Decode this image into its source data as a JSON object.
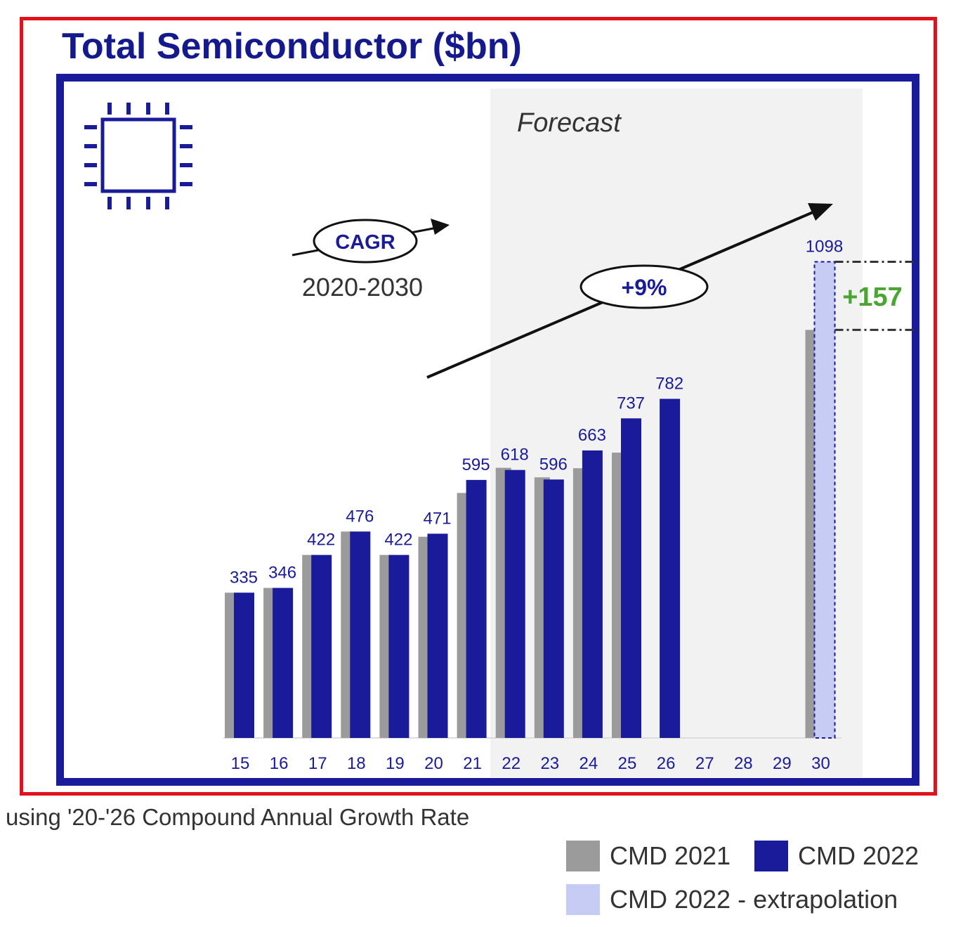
{
  "title": "Total Semiconductor ($bn)",
  "forecast_label": "Forecast",
  "cagr": {
    "label": "CAGR",
    "period": "2020-2030",
    "value": "+9%"
  },
  "delta_label": "+157",
  "footnote": "using '20-'26 Compound Annual Growth Rate",
  "colors": {
    "frame_red": "#e0121b",
    "frame_blue": "#1a1b9a",
    "cmd2021": "#9b9b9b",
    "cmd2022": "#1a1b9a",
    "extrapolation": "#c7ccf5",
    "delta": "#4aa532"
  },
  "legend": [
    {
      "label": "CMD 2021",
      "color": "#9b9b9b"
    },
    {
      "label": "CMD 2022",
      "color": "#1a1b9a"
    },
    {
      "label": "CMD 2022 - extrapolation",
      "color": "#c7ccf5"
    }
  ],
  "chart_data": {
    "type": "bar",
    "title": "Total Semiconductor ($bn)",
    "categories": [
      "15",
      "16",
      "17",
      "18",
      "19",
      "20",
      "21",
      "22",
      "23",
      "24",
      "25",
      "26",
      "27",
      "28",
      "29",
      "30"
    ],
    "forecast_from": "22",
    "series": [
      {
        "name": "CMD 2021",
        "values": [
          335,
          346,
          422,
          476,
          422,
          464,
          565,
          623,
          601,
          622,
          658,
          null,
          null,
          null,
          null,
          941
        ]
      },
      {
        "name": "CMD 2022",
        "values": [
          335,
          346,
          422,
          476,
          422,
          471,
          595,
          618,
          596,
          663,
          737,
          782,
          null,
          null,
          null,
          null
        ]
      },
      {
        "name": "CMD 2022 - extrapolation",
        "values": [
          null,
          null,
          null,
          null,
          null,
          null,
          null,
          null,
          null,
          null,
          null,
          null,
          null,
          null,
          null,
          1098
        ]
      }
    ],
    "data_labels": [
      "335",
      "346",
      "422",
      "476",
      "422",
      "471",
      "595",
      "618",
      "596",
      "663",
      "737",
      "782",
      null,
      null,
      null,
      "1098"
    ],
    "ylim": [
      0,
      1150
    ],
    "legend_position": "bottom-right"
  }
}
